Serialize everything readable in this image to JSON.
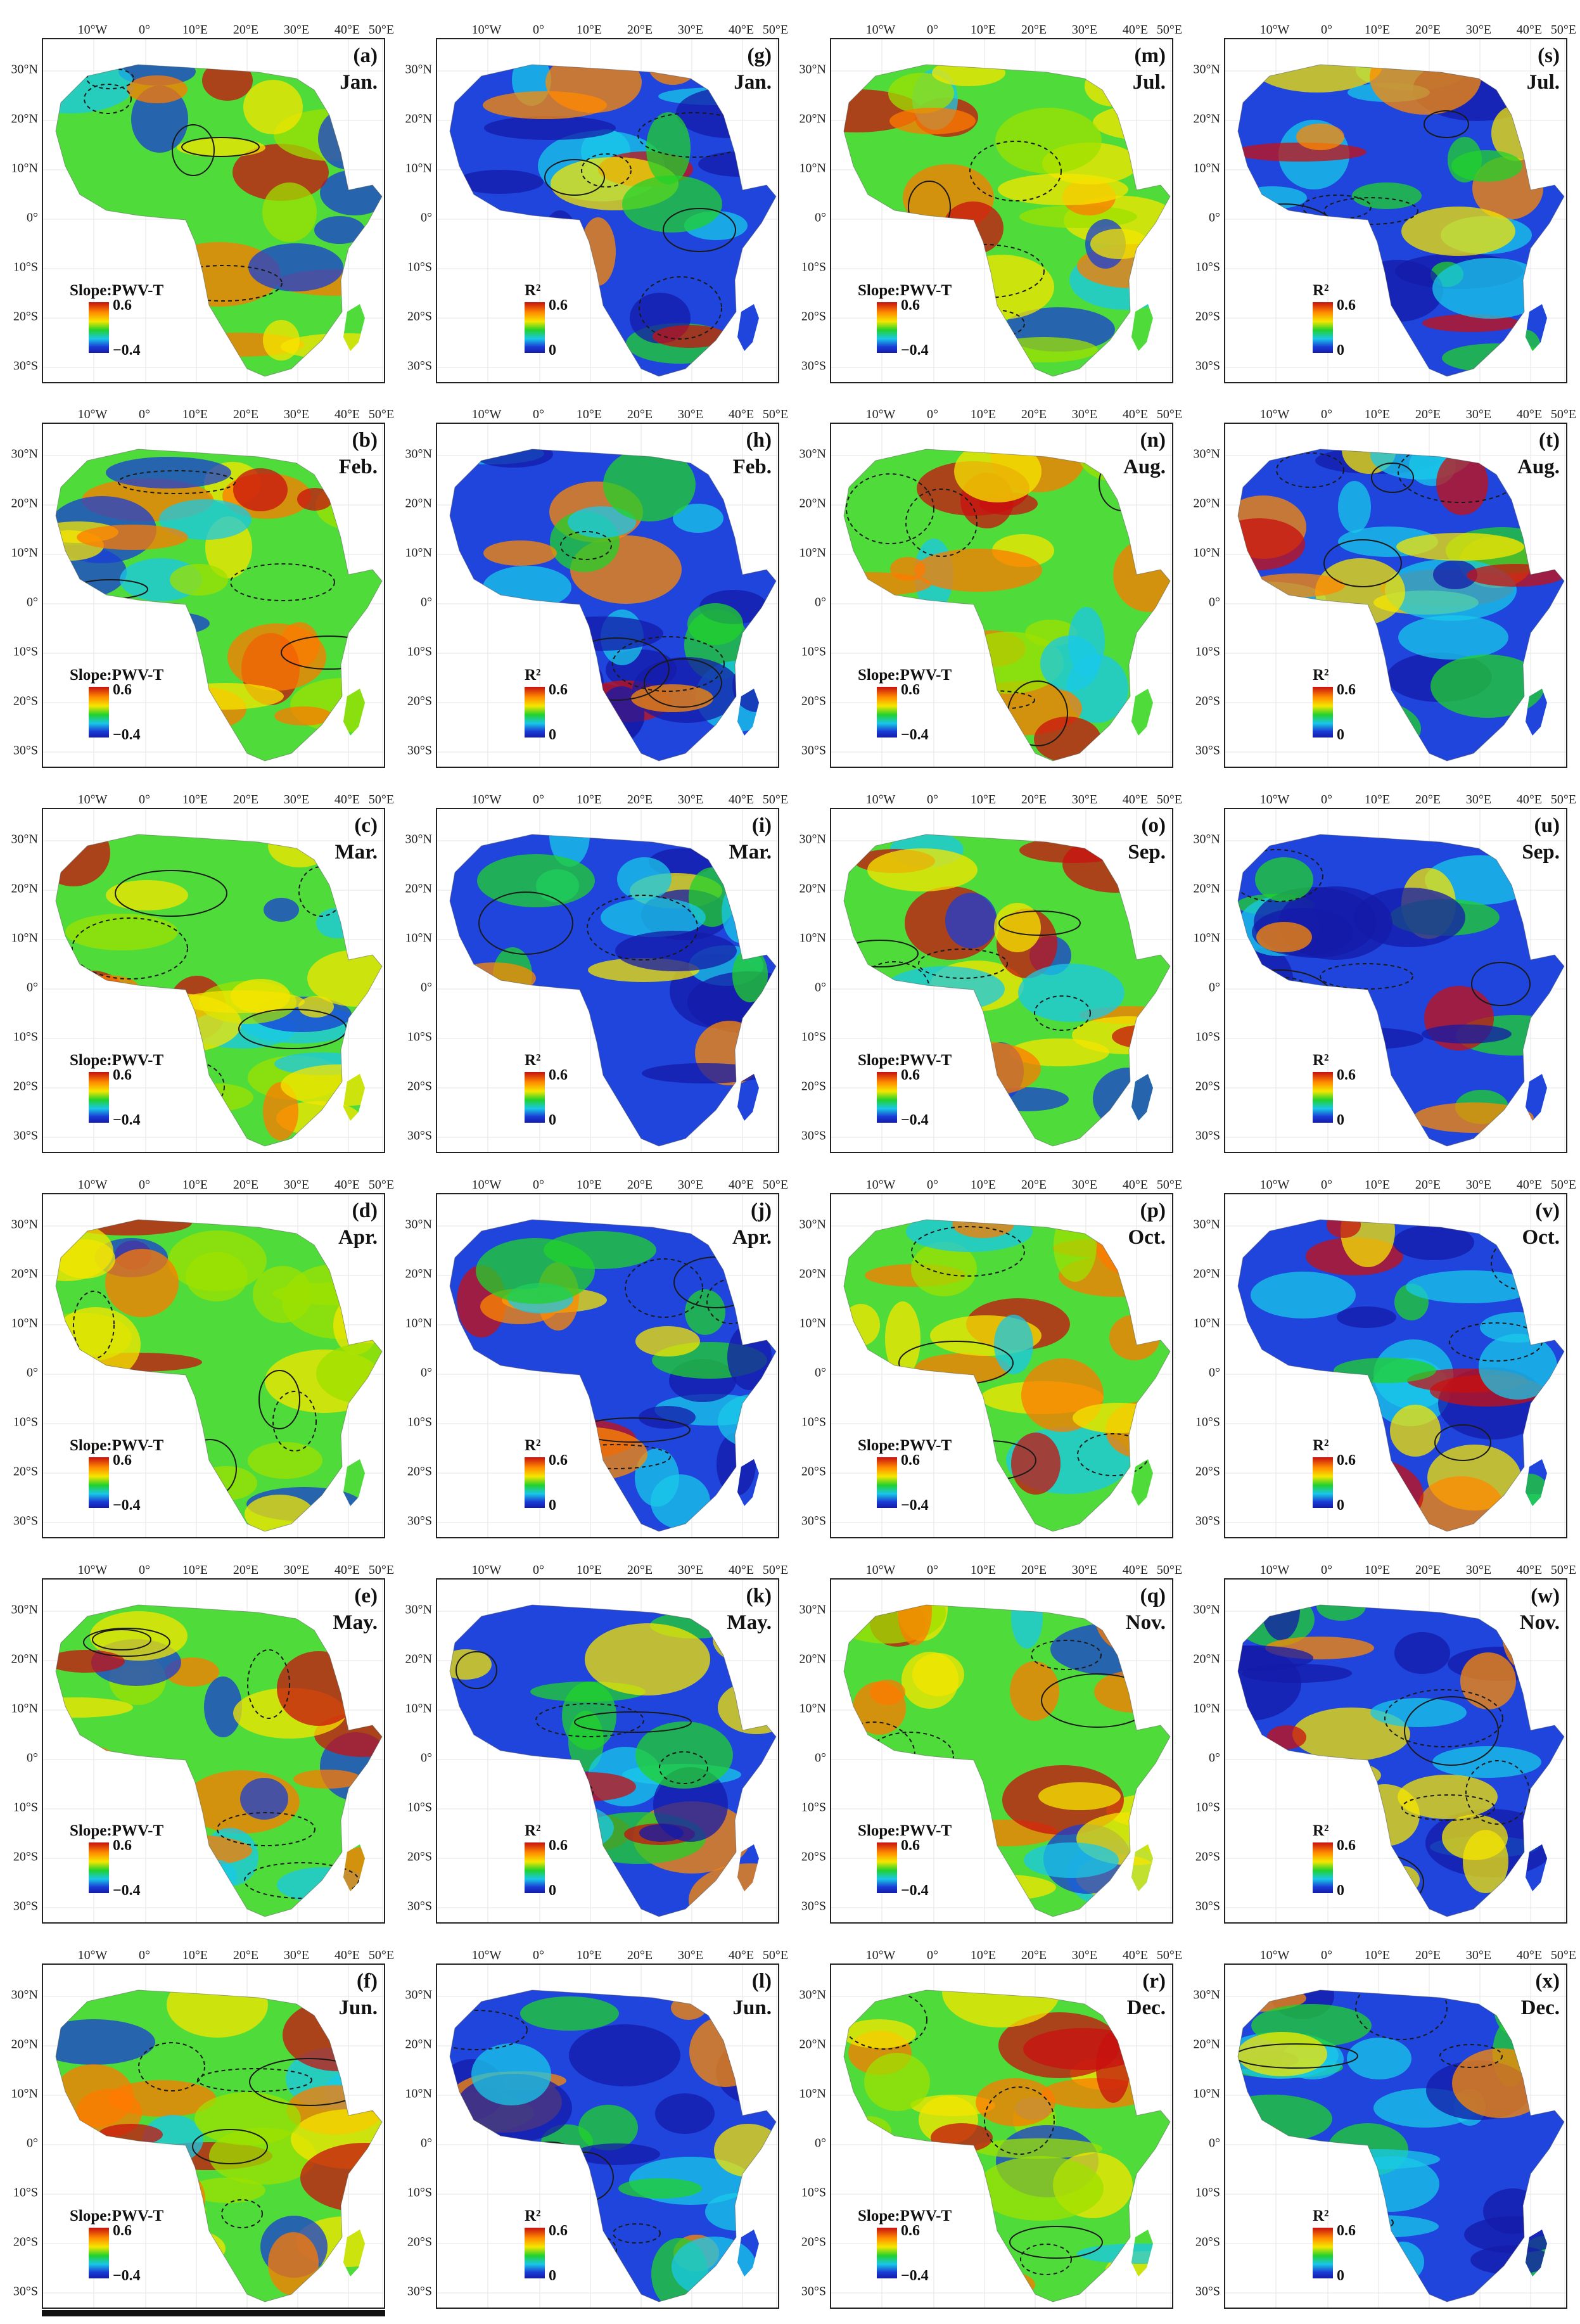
{
  "lon_labels": [
    "10°W",
    "0°",
    "10°E",
    "20°E",
    "30°E",
    "40°E",
    "50°E"
  ],
  "lat_labels": [
    "30°N",
    "20°N",
    "10°N",
    "0°",
    "10°S",
    "20°S",
    "30°S"
  ],
  "legend_types": {
    "slope": {
      "title": "Slope:PWV-T",
      "max": "0.6",
      "min": "−0.4"
    },
    "r2": {
      "title": "R²",
      "max": "0.6",
      "min": "0"
    }
  },
  "colors": {
    "red": "#c81010",
    "orange": "#ff8a00",
    "yellow": "#f5e600",
    "green": "#22d12b",
    "cyan": "#19c8e8",
    "blue": "#1a3cd6",
    "darkblue": "#141ba8"
  },
  "panels": [
    {
      "label": "(a)",
      "month": "Jan.",
      "type": "slope"
    },
    {
      "label": "(g)",
      "month": "Jan.",
      "type": "r2"
    },
    {
      "label": "(m)",
      "month": "Jul.",
      "type": "slope"
    },
    {
      "label": "(s)",
      "month": "Jul.",
      "type": "r2"
    },
    {
      "label": "(b)",
      "month": "Feb.",
      "type": "slope"
    },
    {
      "label": "(h)",
      "month": "Feb.",
      "type": "r2"
    },
    {
      "label": "(n)",
      "month": "Aug.",
      "type": "slope"
    },
    {
      "label": "(t)",
      "month": "Aug.",
      "type": "r2"
    },
    {
      "label": "(c)",
      "month": "Mar.",
      "type": "slope"
    },
    {
      "label": "(i)",
      "month": "Mar.",
      "type": "r2"
    },
    {
      "label": "(o)",
      "month": "Sep.",
      "type": "slope"
    },
    {
      "label": "(u)",
      "month": "Sep.",
      "type": "r2"
    },
    {
      "label": "(d)",
      "month": "Apr.",
      "type": "slope"
    },
    {
      "label": "(j)",
      "month": "Apr.",
      "type": "r2"
    },
    {
      "label": "(p)",
      "month": "Oct.",
      "type": "slope"
    },
    {
      "label": "(v)",
      "month": "Oct.",
      "type": "r2"
    },
    {
      "label": "(e)",
      "month": "May.",
      "type": "slope"
    },
    {
      "label": "(k)",
      "month": "May.",
      "type": "r2"
    },
    {
      "label": "(q)",
      "month": "Nov.",
      "type": "slope"
    },
    {
      "label": "(w)",
      "month": "Nov.",
      "type": "r2"
    },
    {
      "label": "(f)",
      "month": "Jun.",
      "type": "slope"
    },
    {
      "label": "(l)",
      "month": "Jun.",
      "type": "r2"
    },
    {
      "label": "(r)",
      "month": "Dec.",
      "type": "slope"
    },
    {
      "label": "(x)",
      "month": "Dec.",
      "type": "r2"
    }
  ]
}
